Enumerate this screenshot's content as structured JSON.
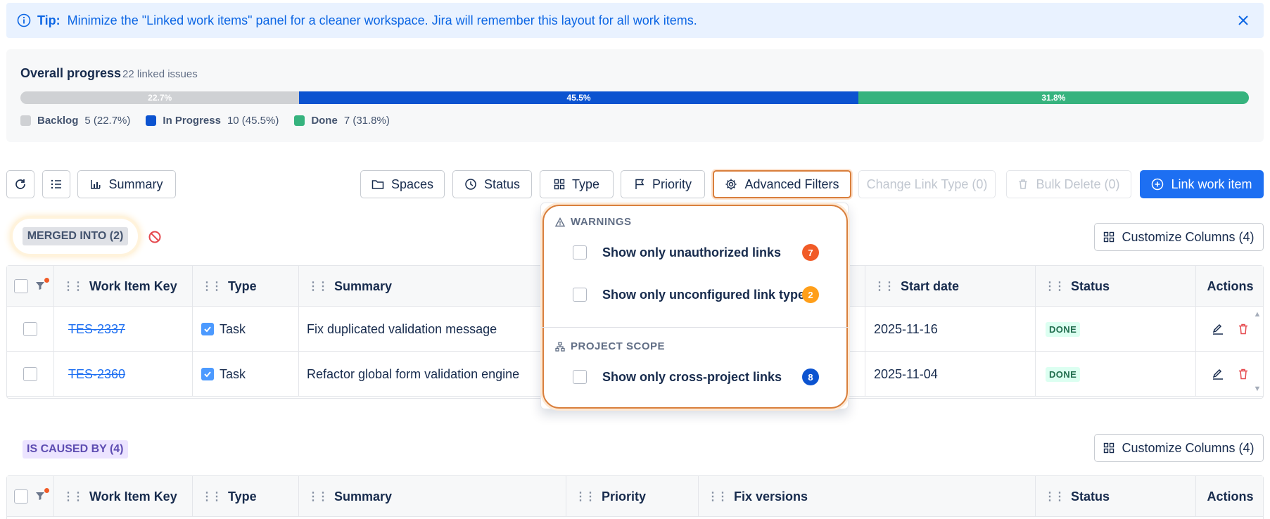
{
  "tip": {
    "label": "Tip:",
    "text": "Minimize the \"Linked work items\" panel for a cleaner workspace. Jira will remember this layout for all work items."
  },
  "progress": {
    "title": "Overall progress",
    "count": "22 linked issues",
    "segments": [
      {
        "name": "Backlog",
        "pct": 22.7,
        "pct_label": "22.7%",
        "color": "#cfd1d4"
      },
      {
        "name": "In Progress",
        "pct": 45.5,
        "pct_label": "45.5%",
        "color": "#0c53d0"
      },
      {
        "name": "Done",
        "pct": 31.8,
        "pct_label": "31.8%",
        "color": "#36b37e"
      }
    ],
    "legend": [
      {
        "label": "Backlog",
        "value": "5 (22.7%)"
      },
      {
        "label": "In Progress",
        "value": "10 (45.5%)"
      },
      {
        "label": "Done",
        "value": "7 (31.8%)"
      }
    ]
  },
  "toolbar": {
    "summary": "Summary",
    "spaces": "Spaces",
    "status": "Status",
    "type": "Type",
    "priority": "Priority",
    "advanced": "Advanced Filters",
    "change_link": "Change Link Type (0)",
    "bulk_delete": "Bulk Delete (0)",
    "link_item": "Link work item"
  },
  "sections": {
    "merged": "MERGED INTO (2)",
    "caused": "IS CAUSED BY (4)",
    "customize": "Customize Columns (4)"
  },
  "table1": {
    "headers": {
      "key": "Work Item Key",
      "type": "Type",
      "summary": "Summary",
      "start": "Start date",
      "status": "Status",
      "actions": "Actions"
    },
    "rows": [
      {
        "key": "TES-2337",
        "type": "Task",
        "summary": "Fix duplicated validation message",
        "start": "2025-11-16",
        "status": "DONE"
      },
      {
        "key": "TES-2360",
        "type": "Task",
        "summary": "Refactor global form validation engine",
        "start": "2025-11-04",
        "status": "DONE"
      }
    ]
  },
  "table2": {
    "headers": {
      "key": "Work Item Key",
      "type": "Type",
      "summary": "Summary",
      "priority": "Priority",
      "fix": "Fix versions",
      "status": "Status",
      "actions": "Actions"
    }
  },
  "dropdown": {
    "warnings_head": "WARNINGS",
    "scope_head": "PROJECT SCOPE",
    "items": [
      {
        "label": "Show only unauthorized links",
        "count": "7",
        "color": "#f15b27"
      },
      {
        "label": "Show only unconfigured link types",
        "count": "2",
        "color": "#ff9f1a"
      },
      {
        "label": "Show only cross-project links",
        "count": "8",
        "color": "#0c53d0"
      }
    ]
  },
  "colors": {
    "primary": "#1d6ff2",
    "accent_outline": "#d97f3c"
  }
}
